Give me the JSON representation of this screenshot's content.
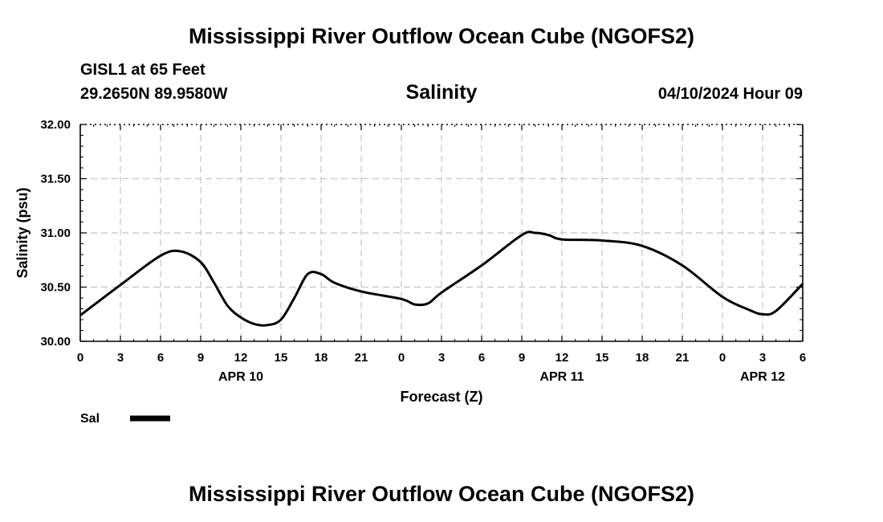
{
  "page_title": "Mississippi River Outflow Ocean Cube (NGOFS2)",
  "footer_title": "Mississippi River Outflow Ocean Cube (NGOFS2)",
  "station": {
    "name": "GISL1 at 65 Feet",
    "coords": "29.2650N  89.9580W",
    "datetime": "04/10/2024 Hour 09"
  },
  "chart_data": {
    "type": "line",
    "title": "Salinity",
    "xlabel": "Forecast (Z)",
    "ylabel": "Salinity (psu)",
    "ylim": [
      30.0,
      32.0
    ],
    "xlim": [
      0,
      54
    ],
    "y_ticks": [
      "30.00",
      "30.50",
      "31.00",
      "31.50",
      "32.00"
    ],
    "y_tick_values": [
      30.0,
      30.5,
      31.0,
      31.5,
      32.0
    ],
    "x_ticks": [
      "0",
      "3",
      "6",
      "9",
      "12",
      "15",
      "18",
      "21",
      "0",
      "3",
      "6",
      "9",
      "12",
      "15",
      "18",
      "21",
      "0",
      "3",
      "6"
    ],
    "date_labels": [
      {
        "label": "APR 10",
        "hour": 12
      },
      {
        "label": "APR 11",
        "hour": 36
      },
      {
        "label": "APR 12",
        "hour": 51
      }
    ],
    "grid": true,
    "legend": {
      "position": "bottom-left",
      "entries": [
        {
          "label": "Sal",
          "color": "#000000"
        }
      ]
    },
    "series": [
      {
        "name": "Sal",
        "color": "#000000",
        "x": [
          0,
          3,
          6,
          7.5,
          9,
          10,
          11,
          12,
          13,
          14,
          15,
          16,
          17,
          18,
          19,
          21,
          24,
          25,
          26,
          27,
          30,
          33,
          34,
          35,
          36,
          39,
          42,
          45,
          48,
          50,
          51,
          52,
          54
        ],
        "y": [
          30.24,
          30.52,
          30.79,
          30.83,
          30.73,
          30.54,
          30.33,
          30.22,
          30.16,
          30.15,
          30.2,
          30.4,
          30.62,
          30.62,
          30.54,
          30.46,
          30.39,
          30.34,
          30.35,
          30.45,
          30.7,
          30.98,
          31.0,
          30.98,
          30.94,
          30.93,
          30.88,
          30.7,
          30.41,
          30.29,
          30.25,
          30.28,
          30.53
        ]
      }
    ]
  }
}
